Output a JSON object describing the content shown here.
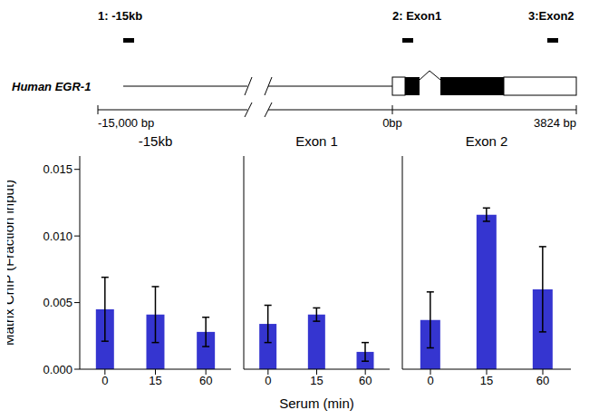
{
  "diagram": {
    "gene_label": "Human EGR-1",
    "probes": [
      "1: -15kb",
      "2: Exon1",
      "3:Exon2"
    ],
    "scale_labels": [
      "-15,000 bp",
      "0bp",
      "3824 bp"
    ]
  },
  "chart_data": [
    {
      "type": "bar",
      "title": "-15kb",
      "categories": [
        "0",
        "15",
        "60"
      ],
      "values": [
        0.0045,
        0.0041,
        0.0028
      ],
      "errors": [
        0.0024,
        0.0021,
        0.0011
      ],
      "color": "#3535d0",
      "ylim": [
        0,
        0.016
      ],
      "yticks": [
        {
          "value": 0,
          "label": "0.000"
        },
        0.005,
        {
          "value": 0.01,
          "label": "0.010"
        },
        0.015
      ],
      "y_label": "Matrix ChIP (Fraction input)"
    },
    {
      "type": "bar",
      "title": "Exon 1",
      "categories": [
        "0",
        "15",
        "60"
      ],
      "values": [
        0.0034,
        0.0041,
        0.0013
      ],
      "errors": [
        0.0014,
        0.0005,
        0.0007
      ],
      "color": "#3535d0",
      "ylim": [
        0,
        0.016
      ],
      "yticks": [
        {
          "value": 0,
          "label": "0.000"
        },
        0.005,
        {
          "value": 0.01,
          "label": "0.010"
        },
        0.015
      ],
      "tick_labels": "x",
      "x_label": "Serum (min)"
    },
    {
      "type": "bar",
      "title": "Exon 2",
      "categories": [
        "0",
        "15",
        "60"
      ],
      "values": [
        0.0037,
        0.0116,
        0.006
      ],
      "errors": [
        0.0021,
        0.0005,
        0.0032
      ],
      "color": "#3535d0",
      "ylim": [
        0,
        0.016
      ],
      "yticks": [
        {
          "value": 0,
          "label": "0.000"
        },
        0.005,
        {
          "value": 0.01,
          "label": "0.010"
        },
        0.015
      ],
      "tick_labels": "x"
    }
  ]
}
